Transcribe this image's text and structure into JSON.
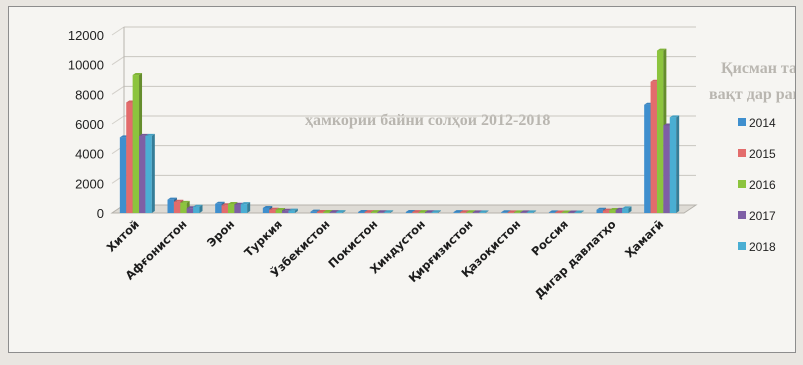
{
  "chart_data": {
    "type": "bar",
    "subtype": "3d-clustered-column",
    "categories": [
      "Хитой",
      "Афғонистон",
      "Эрон",
      "Туркия",
      "Ўзбекистон",
      "Покистон",
      "Хиндустон",
      "Қирғизистон",
      "Қазоқистон",
      "Россия",
      "Дигар давлатҳо",
      "Ҳамагӣ"
    ],
    "series": [
      {
        "name": "2014",
        "color": "#3f8fce",
        "values": [
          5100,
          900,
          620,
          340,
          90,
          70,
          70,
          60,
          50,
          40,
          220,
          7300
        ]
      },
      {
        "name": "2015",
        "color": "#e36c6c",
        "values": [
          7450,
          760,
          520,
          220,
          70,
          60,
          60,
          50,
          40,
          30,
          160,
          8850
        ]
      },
      {
        "name": "2016",
        "color": "#8cc43e",
        "values": [
          9300,
          680,
          610,
          200,
          70,
          60,
          60,
          50,
          40,
          30,
          200,
          10950
        ]
      },
      {
        "name": "2017",
        "color": "#7e5fa5",
        "values": [
          5200,
          320,
          560,
          150,
          60,
          50,
          50,
          40,
          40,
          30,
          210,
          5900
        ]
      },
      {
        "name": "2018",
        "color": "#4aaed3",
        "values": [
          5200,
          420,
          600,
          160,
          60,
          50,
          50,
          40,
          40,
          30,
          310,
          6450
        ]
      }
    ],
    "ylim": [
      0,
      12000
    ],
    "yticks": [
      "0",
      "2000",
      "4000",
      "6000",
      "8000",
      "10000",
      "12000"
    ],
    "legend_position": "right",
    "grid": true
  },
  "background_text": {
    "lines": [
      "Қисман  таҳқиқ  аз  бар  саноат  ва  ба  сифат  сон",
      "вақт  дар  рақамҳо  Тоҷикистон  бо  минтақа  ва  дар",
      "ҳамкории  байни  солҳои  2012-2018"
    ]
  }
}
